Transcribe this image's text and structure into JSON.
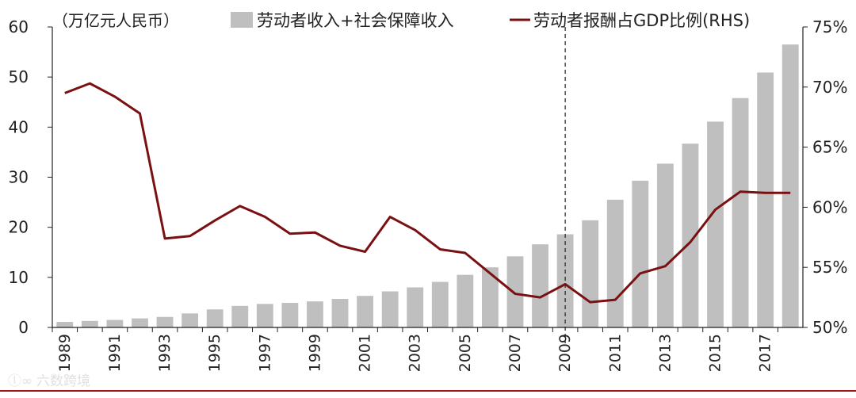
{
  "chart_data": {
    "type": "bar+line",
    "unit_label": "（万亿元人民币）",
    "categories": [
      "1989",
      "1990",
      "1991",
      "1992",
      "1993",
      "1994",
      "1995",
      "1996",
      "1997",
      "1998",
      "1999",
      "2000",
      "2001",
      "2002",
      "2003",
      "2004",
      "2005",
      "2006",
      "2007",
      "2008",
      "2009",
      "2010",
      "2011",
      "2012",
      "2013",
      "2014",
      "2015",
      "2016",
      "2017",
      "2018"
    ],
    "x_tick_labels": [
      "1989",
      "1991",
      "1993",
      "1995",
      "1997",
      "1999",
      "2001",
      "2003",
      "2005",
      "2007",
      "2009",
      "2011",
      "2013",
      "2015",
      "2017"
    ],
    "series": [
      {
        "name": "劳动者收入+社会保障收入",
        "type": "bar",
        "axis": "left",
        "color": "#bfbfbf",
        "values": [
          1.1,
          1.3,
          1.5,
          1.8,
          2.1,
          2.8,
          3.6,
          4.3,
          4.7,
          4.9,
          5.2,
          5.7,
          6.3,
          7.2,
          8.0,
          9.1,
          10.5,
          12.0,
          14.2,
          16.6,
          18.6,
          21.4,
          25.5,
          29.3,
          32.7,
          36.7,
          41.1,
          45.8,
          50.9,
          56.5
        ]
      },
      {
        "name": "劳动者报酬占GDP比例(RHS)",
        "type": "line",
        "axis": "right",
        "color": "#7a1012",
        "values": [
          69.5,
          70.3,
          69.2,
          67.8,
          57.4,
          57.6,
          58.9,
          60.1,
          59.2,
          57.8,
          57.9,
          56.8,
          56.3,
          59.2,
          58.1,
          56.5,
          56.2,
          54.5,
          52.8,
          52.5,
          53.6,
          52.1,
          52.3,
          54.5,
          55.1,
          57.1,
          59.8,
          61.3,
          61.2,
          61.2
        ]
      }
    ],
    "left_axis": {
      "range": [
        0,
        60
      ],
      "ticks": [
        0,
        10,
        20,
        30,
        40,
        50,
        60
      ],
      "tick_labels": [
        "0",
        "10",
        "20",
        "30",
        "40",
        "50",
        "60"
      ]
    },
    "right_axis": {
      "range": [
        50,
        75
      ],
      "ticks": [
        50,
        55,
        60,
        65,
        70,
        75
      ],
      "tick_labels": [
        "50%",
        "55%",
        "60%",
        "65%",
        "70%",
        "75%"
      ]
    },
    "reference_line": {
      "category": "2009",
      "style": "dashed"
    },
    "legend_position": "top",
    "grid": false
  },
  "watermark": {
    "text": "六数跨境"
  },
  "colors": {
    "bar": "#bfbfbf",
    "line": "#7a1012",
    "axis": "#222222",
    "bottom_rule": "#a01616"
  }
}
